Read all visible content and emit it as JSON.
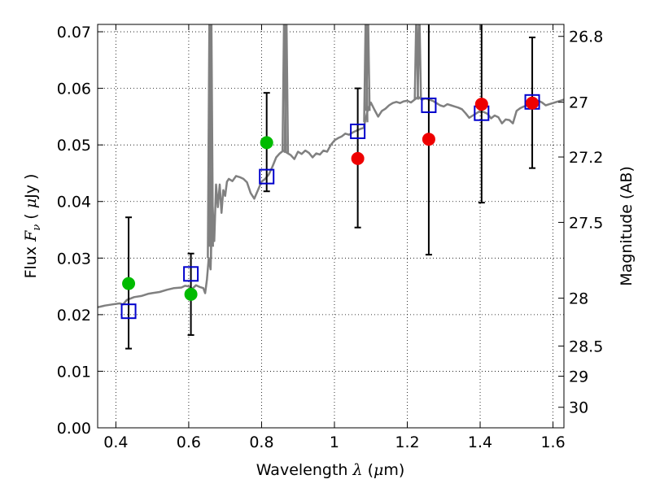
{
  "chart_data": {
    "type": "scatter",
    "xlabel": {
      "pre": "Wavelength ",
      "sym": "λ",
      "post": " (",
      "mu": "μ",
      "unit": "m)"
    },
    "ylabel": {
      "pre": "Flux ",
      "sym": "F",
      "sub": "ν",
      "post": " ( ",
      "mu": "μ",
      "unit": "Jy )"
    },
    "y2label": "Magnitude (AB)",
    "xlim": [
      0.35,
      1.63
    ],
    "ylim": [
      0.0,
      0.0713
    ],
    "xticks": [
      0.4,
      0.6,
      0.8,
      1.0,
      1.2,
      1.4,
      1.6
    ],
    "xtick_labels": [
      "0.4",
      "0.6",
      "0.8",
      "1",
      "1.2",
      "1.4",
      "1.6"
    ],
    "yticks": [
      0.0,
      0.01,
      0.02,
      0.03,
      0.04,
      0.05,
      0.06,
      0.07
    ],
    "ytick_labels": [
      "0.00",
      "0.01",
      "0.02",
      "0.03",
      "0.04",
      "0.05",
      "0.06",
      "0.07"
    ],
    "y2ticks": [
      {
        "mag": 26.8,
        "label": "26.8"
      },
      {
        "mag": 27.0,
        "label": "27"
      },
      {
        "mag": 27.2,
        "label": "27.2"
      },
      {
        "mag": 27.5,
        "label": "27.5"
      },
      {
        "mag": 28.0,
        "label": "28"
      },
      {
        "mag": 28.5,
        "label": "28.5"
      },
      {
        "mag": 29.0,
        "label": "29"
      },
      {
        "mag": 30.0,
        "label": "30"
      }
    ],
    "grid": true,
    "colors": {
      "spectrum": "#808080",
      "green": "#00bb00",
      "red": "#ee0000",
      "model": "#0000cc",
      "errorbar": "#000000"
    },
    "spectrum": [
      [
        0.35,
        0.0213
      ],
      [
        0.37,
        0.0216
      ],
      [
        0.39,
        0.0218
      ],
      [
        0.41,
        0.022
      ],
      [
        0.42,
        0.0218
      ],
      [
        0.43,
        0.0226
      ],
      [
        0.45,
        0.0231
      ],
      [
        0.47,
        0.0233
      ],
      [
        0.49,
        0.0237
      ],
      [
        0.5,
        0.0238
      ],
      [
        0.52,
        0.024
      ],
      [
        0.54,
        0.0244
      ],
      [
        0.56,
        0.0247
      ],
      [
        0.58,
        0.0248
      ],
      [
        0.59,
        0.0251
      ],
      [
        0.6,
        0.025
      ],
      [
        0.61,
        0.0246
      ],
      [
        0.62,
        0.0252
      ],
      [
        0.63,
        0.0249
      ],
      [
        0.64,
        0.0247
      ],
      [
        0.645,
        0.0238
      ],
      [
        0.65,
        0.0262
      ],
      [
        0.655,
        0.03
      ],
      [
        0.66,
        0.028
      ],
      [
        0.665,
        0.04
      ],
      [
        0.67,
        0.033
      ],
      [
        0.675,
        0.043
      ],
      [
        0.68,
        0.039
      ],
      [
        0.685,
        0.043
      ],
      [
        0.69,
        0.038
      ],
      [
        0.695,
        0.042
      ],
      [
        0.7,
        0.041
      ],
      [
        0.705,
        0.0435
      ],
      [
        0.71,
        0.044
      ],
      [
        0.72,
        0.0436
      ],
      [
        0.73,
        0.0445
      ],
      [
        0.74,
        0.0443
      ],
      [
        0.75,
        0.044
      ],
      [
        0.76,
        0.0434
      ],
      [
        0.77,
        0.0415
      ],
      [
        0.78,
        0.0405
      ],
      [
        0.79,
        0.042
      ],
      [
        0.8,
        0.0435
      ],
      [
        0.81,
        0.044
      ],
      [
        0.82,
        0.0448
      ],
      [
        0.83,
        0.0462
      ],
      [
        0.84,
        0.0478
      ],
      [
        0.85,
        0.0485
      ],
      [
        0.86,
        0.049
      ],
      [
        0.87,
        0.0486
      ],
      [
        0.88,
        0.0482
      ],
      [
        0.89,
        0.0475
      ],
      [
        0.9,
        0.0488
      ],
      [
        0.91,
        0.0484
      ],
      [
        0.92,
        0.049
      ],
      [
        0.93,
        0.0486
      ],
      [
        0.94,
        0.0478
      ],
      [
        0.95,
        0.0485
      ],
      [
        0.96,
        0.0483
      ],
      [
        0.97,
        0.049
      ],
      [
        0.98,
        0.0488
      ],
      [
        0.99,
        0.05
      ],
      [
        1.0,
        0.0508
      ],
      [
        1.01,
        0.0512
      ],
      [
        1.02,
        0.0515
      ],
      [
        1.03,
        0.052
      ],
      [
        1.04,
        0.0518
      ],
      [
        1.05,
        0.0522
      ],
      [
        1.06,
        0.0525
      ],
      [
        1.07,
        0.0528
      ],
      [
        1.08,
        0.053
      ],
      [
        1.09,
        0.0558
      ],
      [
        1.1,
        0.0575
      ],
      [
        1.11,
        0.0562
      ],
      [
        1.12,
        0.055
      ],
      [
        1.13,
        0.056
      ],
      [
        1.14,
        0.0564
      ],
      [
        1.15,
        0.057
      ],
      [
        1.16,
        0.0574
      ],
      [
        1.17,
        0.0576
      ],
      [
        1.18,
        0.0574
      ],
      [
        1.19,
        0.0577
      ],
      [
        1.2,
        0.0578
      ],
      [
        1.21,
        0.0575
      ],
      [
        1.22,
        0.058
      ],
      [
        1.23,
        0.0585
      ],
      [
        1.24,
        0.058
      ],
      [
        1.25,
        0.0582
      ],
      [
        1.26,
        0.058
      ],
      [
        1.27,
        0.0578
      ],
      [
        1.28,
        0.0574
      ],
      [
        1.29,
        0.057
      ],
      [
        1.3,
        0.0568
      ],
      [
        1.31,
        0.0572
      ],
      [
        1.32,
        0.057
      ],
      [
        1.33,
        0.0568
      ],
      [
        1.34,
        0.0566
      ],
      [
        1.35,
        0.0563
      ],
      [
        1.36,
        0.0556
      ],
      [
        1.37,
        0.0548
      ],
      [
        1.38,
        0.0552
      ],
      [
        1.39,
        0.0556
      ],
      [
        1.4,
        0.056
      ],
      [
        1.41,
        0.0558
      ],
      [
        1.42,
        0.0555
      ],
      [
        1.43,
        0.0547
      ],
      [
        1.44,
        0.0552
      ],
      [
        1.45,
        0.0549
      ],
      [
        1.46,
        0.0538
      ],
      [
        1.47,
        0.0545
      ],
      [
        1.48,
        0.0544
      ],
      [
        1.49,
        0.0538
      ],
      [
        1.5,
        0.056
      ],
      [
        1.51,
        0.0565
      ],
      [
        1.52,
        0.0568
      ],
      [
        1.53,
        0.057
      ],
      [
        1.54,
        0.0575
      ],
      [
        1.55,
        0.0572
      ],
      [
        1.56,
        0.0578
      ],
      [
        1.57,
        0.0575
      ],
      [
        1.58,
        0.057
      ],
      [
        1.59,
        0.0572
      ],
      [
        1.6,
        0.0574
      ],
      [
        1.61,
        0.0576
      ],
      [
        1.62,
        0.0578
      ],
      [
        1.63,
        0.058
      ]
    ],
    "emission_lines": [
      {
        "x": 0.657,
        "base": 0.03
      },
      {
        "x": 0.662,
        "base": 0.032
      },
      {
        "x": 0.862,
        "base": 0.0488
      },
      {
        "x": 0.868,
        "base": 0.0486
      },
      {
        "x": 1.086,
        "base": 0.054
      },
      {
        "x": 1.092,
        "base": 0.056
      },
      {
        "x": 1.225,
        "base": 0.058
      },
      {
        "x": 1.233,
        "base": 0.0582
      }
    ],
    "series": [
      {
        "name": "green",
        "marker": "circle",
        "points": [
          {
            "x": 0.435,
            "y": 0.0255
          },
          {
            "x": 0.606,
            "y": 0.0236
          },
          {
            "x": 0.814,
            "y": 0.0504
          }
        ]
      },
      {
        "name": "red",
        "marker": "circle",
        "points": [
          {
            "x": 1.064,
            "y": 0.0476
          },
          {
            "x": 1.259,
            "y": 0.051
          },
          {
            "x": 1.404,
            "y": 0.0572
          },
          {
            "x": 1.543,
            "y": 0.0574
          }
        ]
      },
      {
        "name": "model",
        "marker": "open-square",
        "points": [
          {
            "x": 0.435,
            "y": 0.0206
          },
          {
            "x": 0.606,
            "y": 0.0272
          },
          {
            "x": 0.814,
            "y": 0.0444
          },
          {
            "x": 1.064,
            "y": 0.0524
          },
          {
            "x": 1.259,
            "y": 0.057
          },
          {
            "x": 1.404,
            "y": 0.0556
          },
          {
            "x": 1.543,
            "y": 0.0576
          }
        ]
      }
    ],
    "errorbars": [
      {
        "x": 0.435,
        "low": 0.014,
        "high": 0.0372
      },
      {
        "x": 0.606,
        "low": 0.0164,
        "high": 0.0308
      },
      {
        "x": 0.814,
        "low": 0.0418,
        "high": 0.0592
      },
      {
        "x": 1.064,
        "low": 0.0354,
        "high": 0.06
      },
      {
        "x": 1.259,
        "low": 0.0306,
        "high": 0.072
      },
      {
        "x": 1.404,
        "low": 0.0398,
        "high": 0.072
      },
      {
        "x": 1.543,
        "low": 0.0459,
        "high": 0.069
      }
    ]
  }
}
